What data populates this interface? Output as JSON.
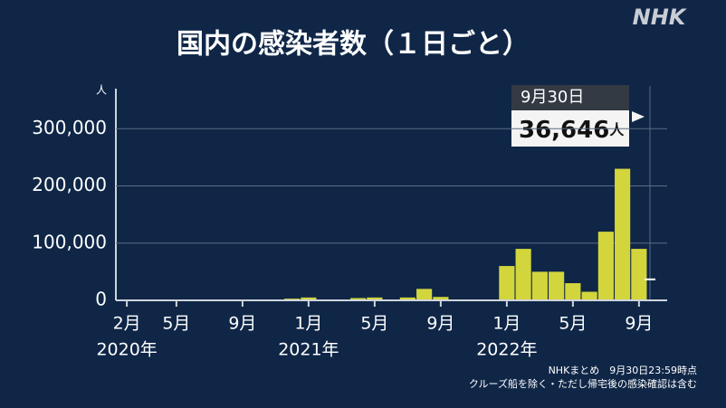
{
  "chart_data": {
    "type": "bar",
    "title": "国内の感染者数（１日ごと）",
    "logo": "NHK",
    "y_unit": "人",
    "categories": [
      "2020-02",
      "2020-03",
      "2020-04",
      "2020-05",
      "2020-06",
      "2020-07",
      "2020-08",
      "2020-09",
      "2020-10",
      "2020-11",
      "2020-12",
      "2021-01",
      "2021-02",
      "2021-03",
      "2021-04",
      "2021-05",
      "2021-06",
      "2021-07",
      "2021-08",
      "2021-09",
      "2021-10",
      "2021-11",
      "2021-12",
      "2022-01",
      "2022-02",
      "2022-03",
      "2022-04",
      "2022-05",
      "2022-06",
      "2022-07",
      "2022-08",
      "2022-09"
    ],
    "values": [
      20,
      100,
      400,
      50,
      50,
      600,
      1000,
      500,
      600,
      1500,
      3000,
      5000,
      1500,
      1500,
      4000,
      5000,
      1500,
      5000,
      20000,
      6000,
      500,
      150,
      300,
      60000,
      90000,
      50000,
      50000,
      30000,
      15000,
      120000,
      230000,
      90000
    ],
    "color": "#d3d53c",
    "ylim": [
      0,
      370000
    ],
    "yticks": [
      0,
      {
        "value": 100000,
        "label": "100,000"
      },
      {
        "value": 200000,
        "label": "200,000"
      },
      {
        "value": 300000,
        "label": "300,000"
      }
    ],
    "grid": true,
    "xticks": [
      {
        "value": "2020-02",
        "label": "2月"
      },
      {
        "value": "2020-05",
        "label": "5月"
      },
      {
        "value": "2020-09",
        "label": "9月"
      },
      {
        "value": "2021-01",
        "label": "1月"
      },
      {
        "value": "2021-05",
        "label": "5月"
      },
      {
        "value": "2021-09",
        "label": "9月"
      },
      {
        "value": "2022-01",
        "label": "1月"
      },
      {
        "value": "2022-05",
        "label": "5月"
      },
      {
        "value": "2022-09",
        "label": "9月"
      }
    ],
    "year_labels": [
      {
        "value": "2020-02",
        "label": "2020年"
      },
      {
        "value": "2021-01",
        "label": "2021年"
      },
      {
        "value": "2022-01",
        "label": "2022年"
      }
    ],
    "annotation": {
      "date": "9月30日",
      "value": 36646,
      "value_label": "36,646",
      "unit": "人"
    },
    "source": [
      "NHKまとめ　9月30日23:59時点",
      "クルーズ船を除く・ただし帰宅後の感染確認は含む"
    ]
  }
}
